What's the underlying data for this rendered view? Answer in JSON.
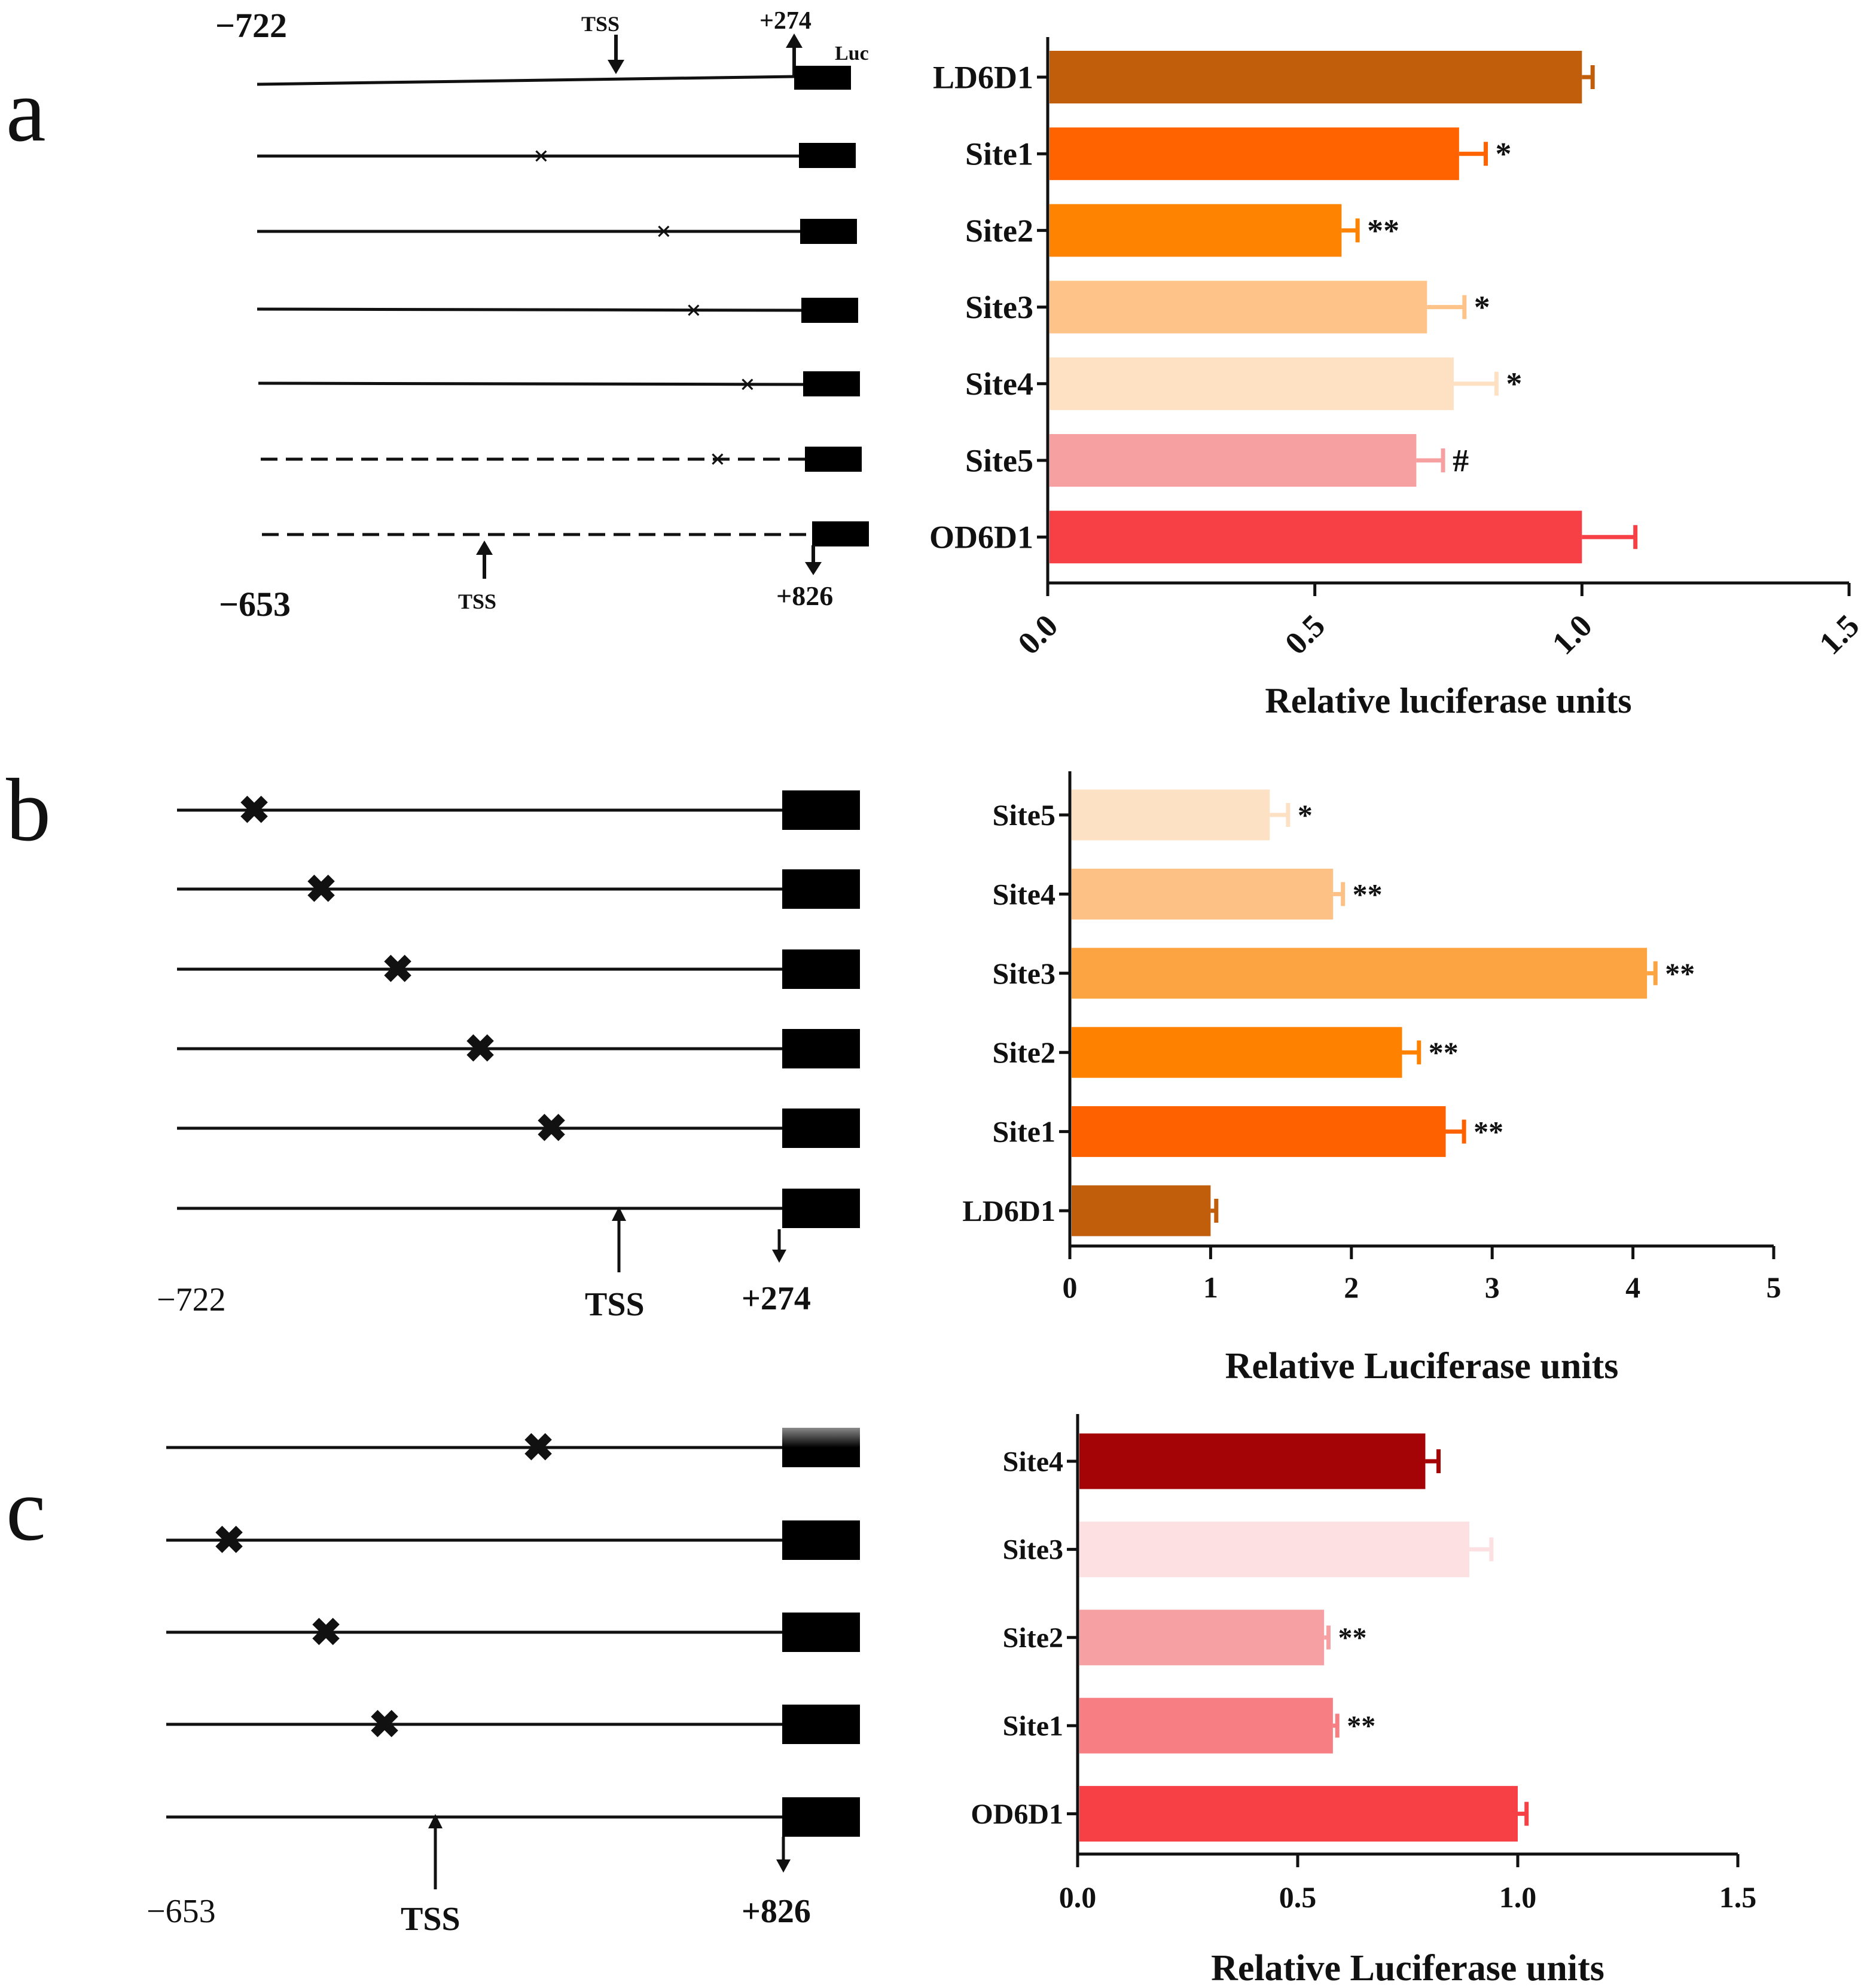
{
  "chart_data": [
    {
      "panel": "a",
      "type": "bar",
      "orientation": "horizontal",
      "xlabel": "Relative luciferase units",
      "xlim": [
        0,
        1.5
      ],
      "xticks": [
        "0.0",
        "0.5",
        "1.0",
        "1.5"
      ],
      "categories": [
        "LD6D1",
        "Site1",
        "Site2",
        "Site3",
        "Site4",
        "Site5",
        "OD6D1"
      ],
      "values": [
        1.0,
        0.77,
        0.55,
        0.71,
        0.76,
        0.69,
        1.0
      ],
      "errors": [
        0.02,
        0.05,
        0.03,
        0.07,
        0.08,
        0.05,
        0.1
      ],
      "significance": [
        "",
        "*",
        "**",
        "*",
        "*",
        "#",
        ""
      ],
      "colors": [
        "#c15e0c",
        "#fe6300",
        "#fe8300",
        "#fec388",
        "#fee0c2",
        "#f7a0a2",
        "#f64046"
      ],
      "constructs": {
        "top_start": "−722",
        "top_end": "+274",
        "top_tss": "TSS",
        "reporter": "Luc",
        "bottom_start": "−653",
        "bottom_end": "+826",
        "bottom_tss": "TSS"
      }
    },
    {
      "panel": "b",
      "type": "bar",
      "orientation": "horizontal",
      "xlabel": "Relative Luciferase units",
      "xlim": [
        0,
        5
      ],
      "xticks": [
        "0",
        "1",
        "2",
        "3",
        "4",
        "5"
      ],
      "categories": [
        "Site5",
        "Site4",
        "Site3",
        "Site2",
        "Site1",
        "LD6D1"
      ],
      "values": [
        1.42,
        1.87,
        4.1,
        2.36,
        2.67,
        1.0
      ],
      "errors": [
        0.13,
        0.07,
        0.06,
        0.12,
        0.13,
        0.04
      ],
      "significance": [
        "*",
        "**",
        "**",
        "**",
        "**",
        ""
      ],
      "colors": [
        "#fde1c4",
        "#fdc185",
        "#fca441",
        "#fe8200",
        "#fe6200",
        "#c15e0c"
      ],
      "constructs": {
        "start": "−722",
        "tss": "TSS",
        "end": "+274"
      }
    },
    {
      "panel": "c",
      "type": "bar",
      "orientation": "horizontal",
      "xlabel": "Relative Luciferase units",
      "xlim": [
        0,
        1.5
      ],
      "xticks": [
        "0.0",
        "0.5",
        "1.0",
        "1.5"
      ],
      "categories": [
        "Site4",
        "Site3",
        "Site2",
        "Site1",
        "OD6D1"
      ],
      "values": [
        0.79,
        0.89,
        0.56,
        0.58,
        1.0
      ],
      "errors": [
        0.03,
        0.05,
        0.01,
        0.01,
        0.02
      ],
      "significance": [
        "",
        "",
        "**",
        "**",
        ""
      ],
      "colors": [
        "#a50407",
        "#fde0e2",
        "#f7a0a3",
        "#f77e82",
        "#f64046"
      ],
      "constructs": {
        "start": "−653",
        "tss": "TSS",
        "end": "+826"
      }
    }
  ]
}
